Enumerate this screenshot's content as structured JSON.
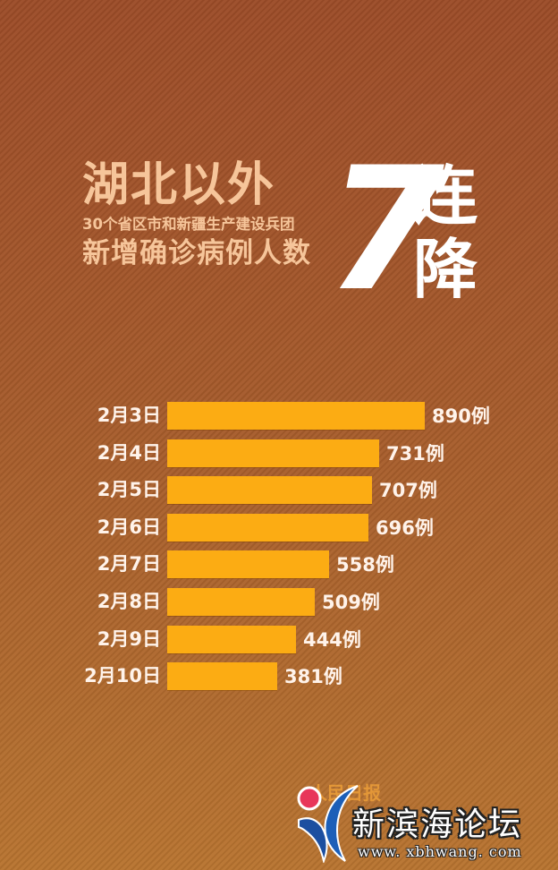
{
  "header": {
    "title_line1": "湖北以外",
    "title_line2": "30个省区市和新疆生产建设兵团",
    "title_line3": "新增确诊病例人数",
    "big_number": "7",
    "big_suffix": "连降"
  },
  "chart_data": {
    "type": "bar",
    "orientation": "horizontal",
    "title": "湖北以外30个省区市和新疆生产建设兵团新增确诊病例人数 7连降",
    "categories": [
      "2月3日",
      "2月4日",
      "2月5日",
      "2月6日",
      "2月7日",
      "2月8日",
      "2月9日",
      "2月10日"
    ],
    "values": [
      890,
      731,
      707,
      696,
      558,
      509,
      444,
      381
    ],
    "value_labels": [
      "890例",
      "731例",
      "707例",
      "696例",
      "558例",
      "509例",
      "444例",
      "381例"
    ],
    "unit": "例",
    "xlabel": "",
    "ylabel": "",
    "grid": false,
    "legend": null,
    "bar_color": "#fcac13"
  },
  "rows": [
    {
      "label": "2月3日",
      "value": "890例"
    },
    {
      "label": "2月4日",
      "value": "731例"
    },
    {
      "label": "2月5日",
      "value": "707例"
    },
    {
      "label": "2月6日",
      "value": "696例"
    },
    {
      "label": "2月7日",
      "value": "558例"
    },
    {
      "label": "2月8日",
      "value": "509例"
    },
    {
      "label": "2月9日",
      "value": "444例"
    },
    {
      "label": "2月10日",
      "value": "381例"
    }
  ],
  "watermark": {
    "source_faint": "人民日报",
    "site_name": "新滨海论坛",
    "site_url": "www. xbhwang. com"
  },
  "colors": {
    "background_top": "#9c4c28",
    "background_bottom": "#b87430",
    "title_text": "#f6c59a",
    "accent_white": "#ffffff",
    "bar": "#fcac13"
  }
}
